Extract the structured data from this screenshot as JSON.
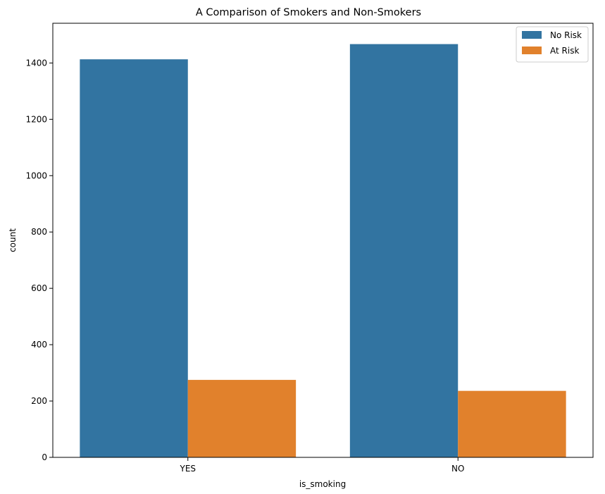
{
  "chart_data": {
    "type": "bar",
    "title": "A Comparison of Smokers and Non-Smokers",
    "xlabel": "is_smoking",
    "ylabel": "count",
    "categories": [
      "YES",
      "NO"
    ],
    "series": [
      {
        "name": "No Risk",
        "values": [
          1413,
          1467
        ],
        "color": "#3274a1"
      },
      {
        "name": "At Risk",
        "values": [
          275,
          236
        ],
        "color": "#e1812c"
      }
    ],
    "yticks": [
      0,
      200,
      400,
      600,
      800,
      1000,
      1200,
      1400
    ],
    "ylim": [
      0,
      1541
    ],
    "grid": false,
    "legend_position": "top-right"
  }
}
